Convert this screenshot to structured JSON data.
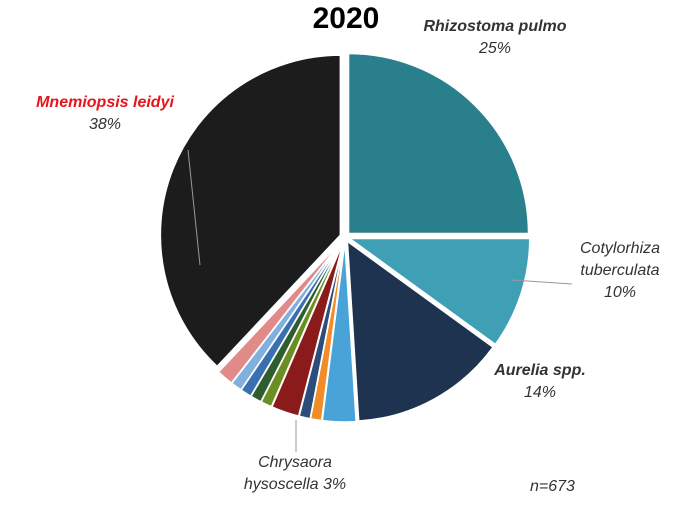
{
  "chart_data": {
    "type": "pie",
    "title": "2020",
    "categories": [
      "Rhizostoma pulmo",
      "Cotylorhiza tuberculata",
      "Aurelia spp.",
      "Chrysaora hysoscella",
      null,
      null,
      null,
      null,
      null,
      null,
      null,
      null,
      "Mnemiopsis leidyi"
    ],
    "values": [
      25,
      10,
      14,
      3,
      1,
      1,
      2.5,
      1,
      1,
      1,
      1,
      1.5,
      38
    ],
    "value_labels": [
      "25%",
      "10%",
      "14%",
      "3%",
      null,
      null,
      null,
      null,
      null,
      null,
      null,
      null,
      "38%"
    ],
    "colors": [
      "#2a7f8c",
      "#3f9fb4",
      "#1e3350",
      "#4aa3d8",
      "#f28c28",
      "#2c4d7a",
      "#8b1a1a",
      "#6b8e23",
      "#2e5e2e",
      "#3a6fb0",
      "#7fb0e0",
      "#e08a8a",
      "#1c1c1c"
    ],
    "annotation": "n=673"
  }
}
